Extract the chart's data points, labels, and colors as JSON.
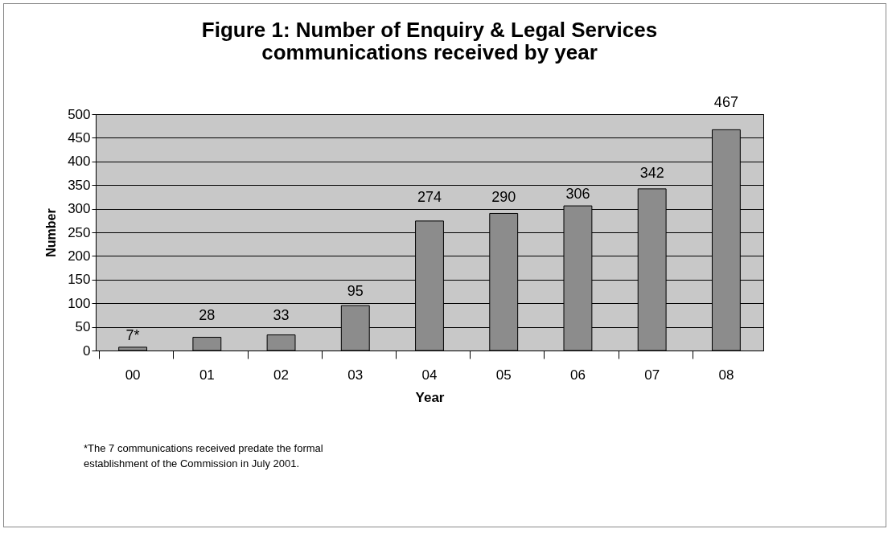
{
  "chart_data": {
    "type": "bar",
    "title": "Figure 1: Number of Enquiry & Legal Services\ncommunications received by year",
    "xlabel": "Year",
    "ylabel": "Number",
    "categories": [
      "00",
      "01",
      "02",
      "03",
      "04",
      "05",
      "06",
      "07",
      "08"
    ],
    "values": [
      7,
      28,
      33,
      95,
      274,
      290,
      306,
      342,
      467
    ],
    "value_labels": [
      "7*",
      "28",
      "33",
      "95",
      "274",
      "290",
      "306",
      "342",
      "467"
    ],
    "color": "#8c8c8c",
    "ylim": [
      0,
      500
    ],
    "yticks": [
      0,
      50,
      100,
      150,
      200,
      250,
      300,
      350,
      400,
      450,
      500
    ],
    "grid": "y",
    "annotations": [
      "*The 7 communications received predate the formal establishment of the Commission in July 2001."
    ]
  }
}
